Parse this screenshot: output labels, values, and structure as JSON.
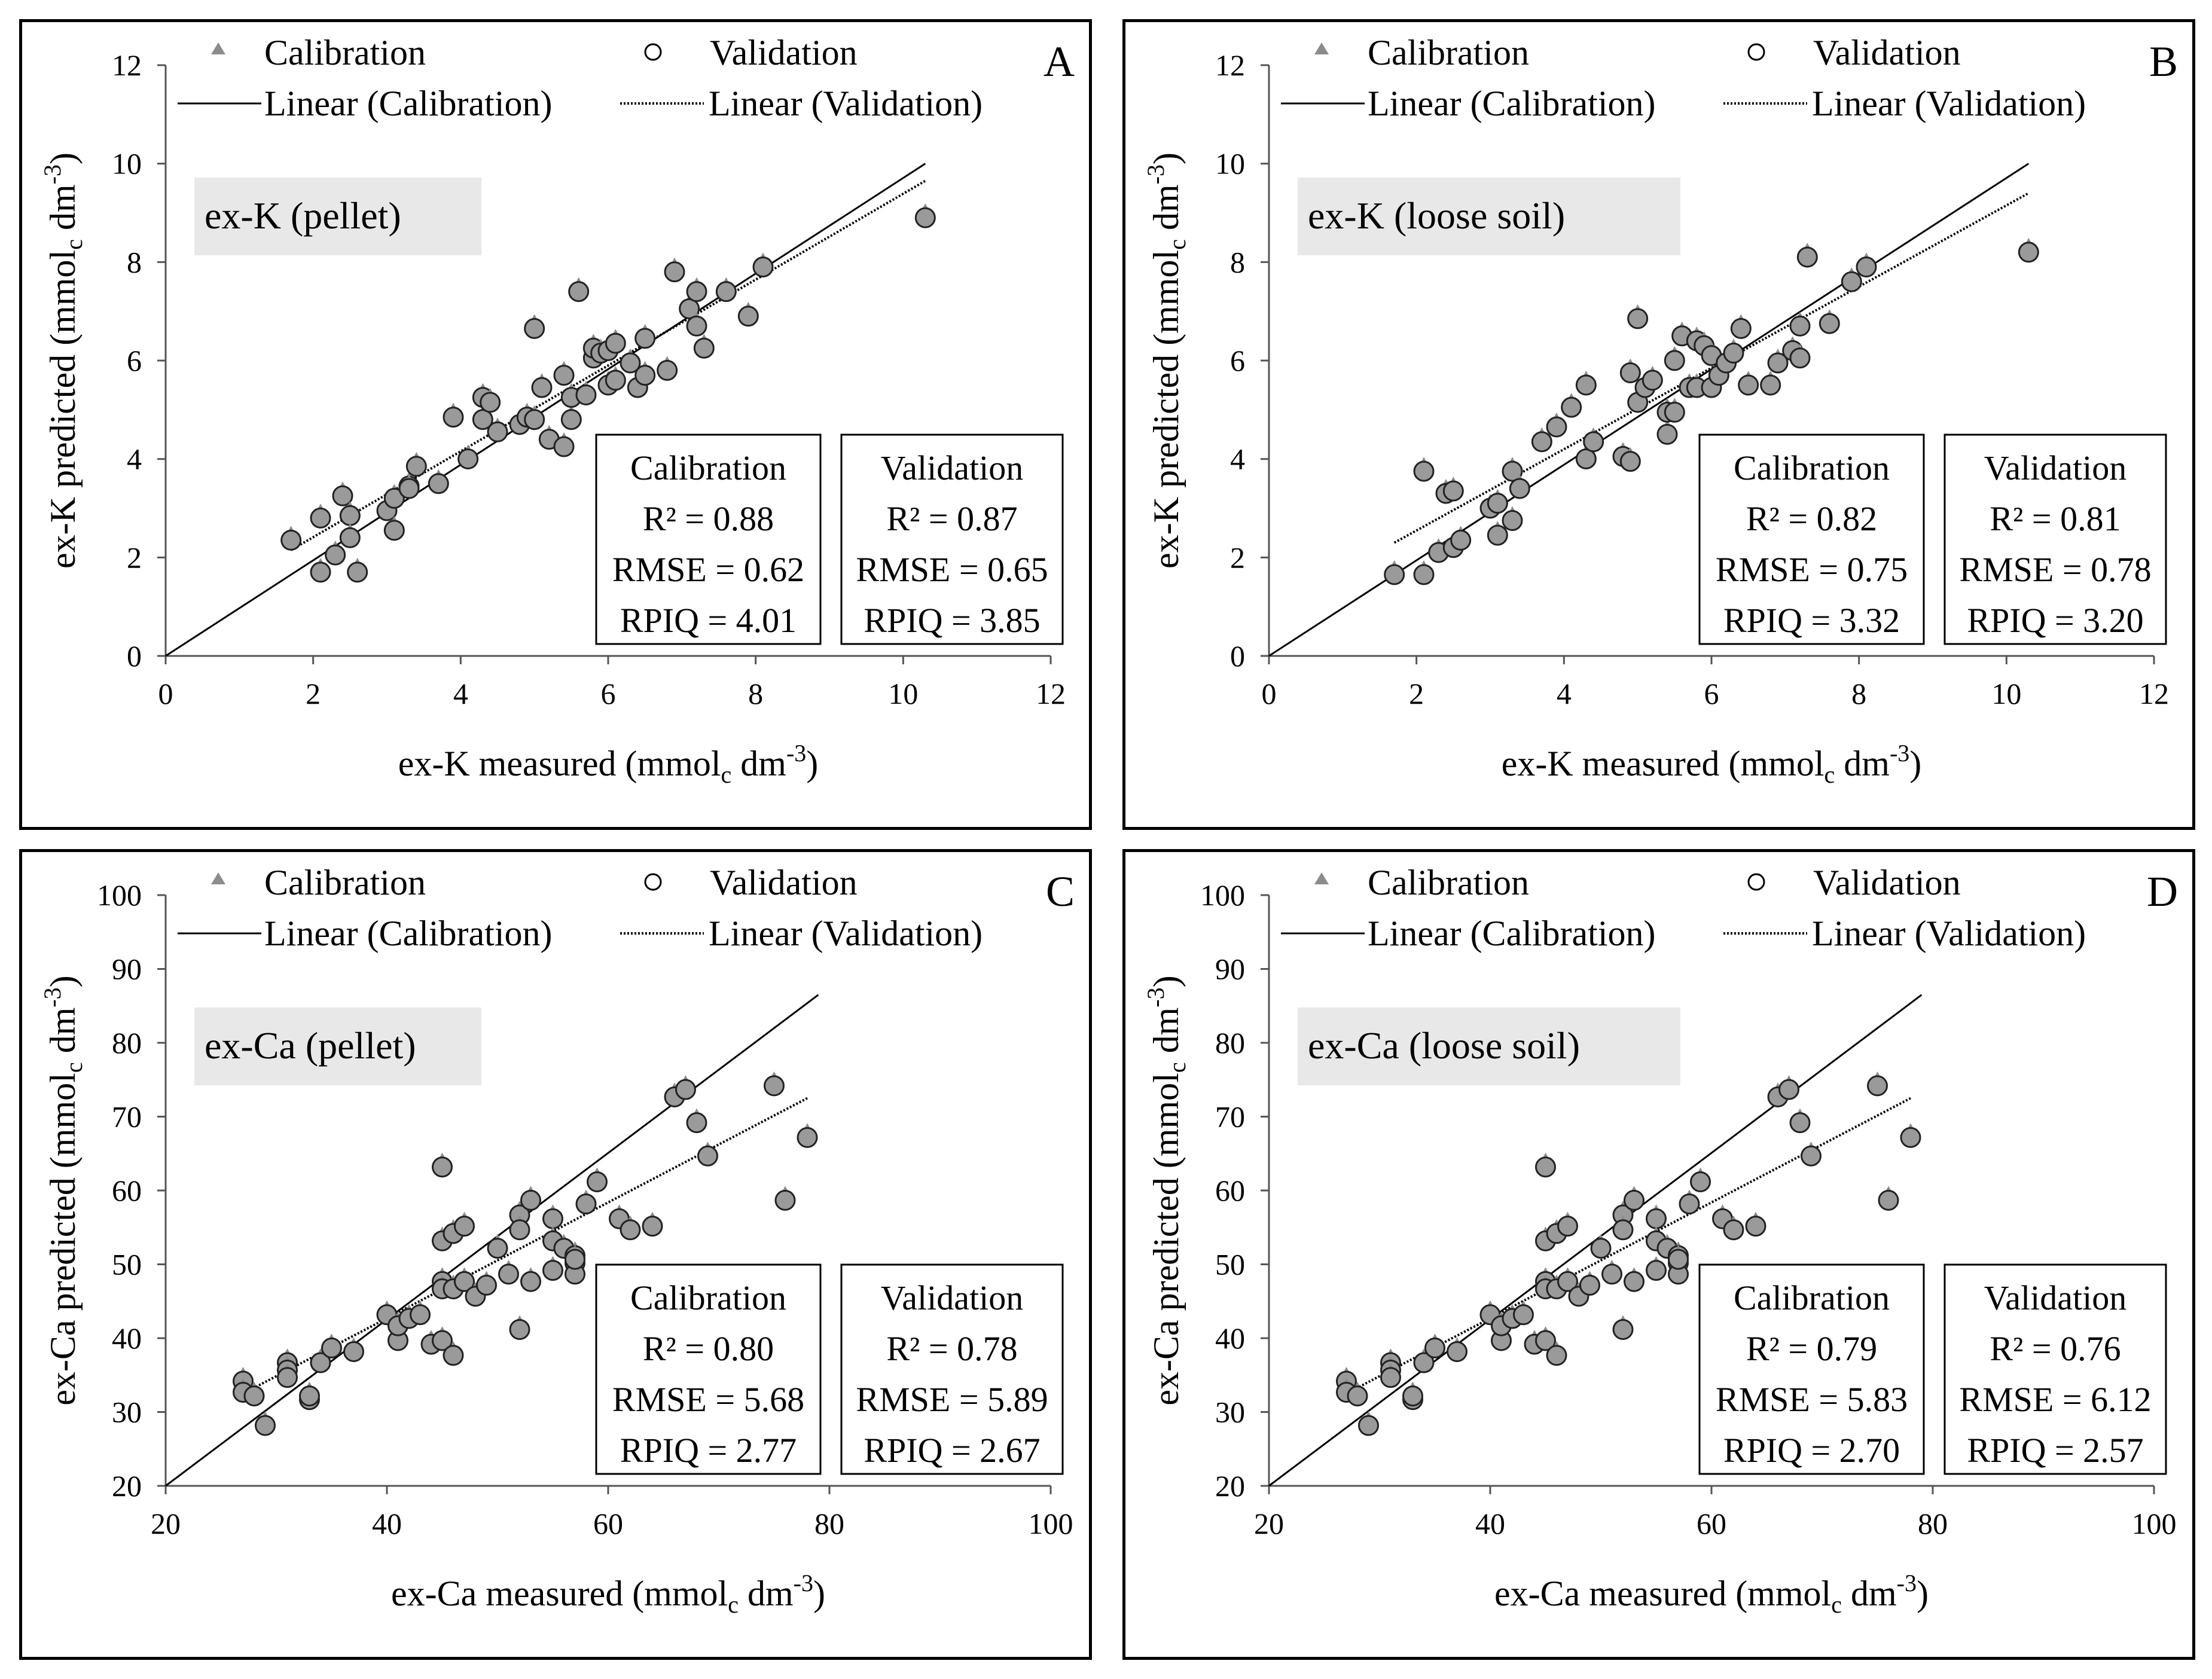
{
  "figure": {
    "legend": {
      "calibration": "Calibration",
      "validation": "Validation",
      "linear_calibration": "Linear (Calibration)",
      "linear_validation": "Linear (Validation)"
    },
    "stat_labels": {
      "r2": "R² = ",
      "rmse": "RMSE = ",
      "rpiq": "RPIQ = "
    }
  },
  "chart_data": [
    {
      "panel": "A",
      "type": "scatter",
      "tag": "ex-K (pellet)",
      "xlabel": "ex-K measured (mmolc dm-3)",
      "ylabel": "ex-K predicted (mmolc dm-3)",
      "xlim": [
        0,
        12
      ],
      "ylim": [
        0,
        12
      ],
      "xticks": [
        "0",
        "2",
        "4",
        "6",
        "8",
        "10",
        "12"
      ],
      "yticks": [
        "0",
        "2",
        "4",
        "6",
        "8",
        "10",
        "12"
      ],
      "calibration_fit": {
        "x": [
          0,
          10.3
        ],
        "y": [
          0,
          10.0
        ]
      },
      "validation_fit": {
        "x": [
          1.7,
          10.3
        ],
        "y": [
          2.15,
          9.65
        ]
      },
      "points_x": [
        1.7,
        2.1,
        2.1,
        2.3,
        2.4,
        2.5,
        2.5,
        2.6,
        3.0,
        3.1,
        3.1,
        3.3,
        3.3,
        3.4,
        3.7,
        3.9,
        4.1,
        4.3,
        4.3,
        4.4,
        4.5,
        4.8,
        4.9,
        5.0,
        5.0,
        5.1,
        5.2,
        5.4,
        5.4,
        5.5,
        5.5,
        5.6,
        5.7,
        5.8,
        5.8,
        5.9,
        6.0,
        6.0,
        6.1,
        6.1,
        6.3,
        6.4,
        6.5,
        6.5,
        6.8,
        6.9,
        7.1,
        7.2,
        7.2,
        7.3,
        7.6,
        7.9,
        8.1,
        10.3
      ],
      "points_y": [
        2.4,
        2.85,
        1.75,
        2.1,
        3.3,
        2.9,
        2.45,
        1.75,
        3.0,
        3.25,
        2.6,
        3.5,
        3.45,
        3.9,
        3.55,
        4.9,
        4.05,
        5.3,
        4.85,
        5.2,
        4.6,
        4.75,
        4.9,
        6.7,
        4.85,
        5.5,
        4.45,
        4.3,
        5.75,
        4.85,
        5.3,
        7.45,
        5.35,
        6.1,
        6.3,
        6.2,
        5.55,
        6.25,
        6.4,
        5.65,
        6.0,
        5.5,
        6.5,
        5.75,
        5.85,
        7.85,
        7.1,
        6.75,
        7.45,
        6.3,
        7.45,
        6.95,
        7.95,
        8.95
      ],
      "calibration": {
        "title": "Calibration",
        "r2": "0.88",
        "rmse": "0.62",
        "rpiq": "4.01"
      },
      "validation": {
        "title": "Validation",
        "r2": "0.87",
        "rmse": "0.65",
        "rpiq": "3.85"
      }
    },
    {
      "panel": "B",
      "type": "scatter",
      "tag": "ex-K (loose soil)",
      "xlabel": "ex-K measured (mmolc dm-3)",
      "ylabel": "ex-K predicted (mmolc dm-3)",
      "xlim": [
        0,
        12
      ],
      "ylim": [
        0,
        12
      ],
      "xticks": [
        "0",
        "2",
        "4",
        "6",
        "8",
        "10",
        "12"
      ],
      "yticks": [
        "0",
        "2",
        "4",
        "6",
        "8",
        "10",
        "12"
      ],
      "calibration_fit": {
        "x": [
          0,
          10.3
        ],
        "y": [
          0,
          10.0
        ]
      },
      "validation_fit": {
        "x": [
          1.7,
          10.3
        ],
        "y": [
          2.3,
          9.4
        ]
      },
      "points_x": [
        1.7,
        2.1,
        2.1,
        2.3,
        2.4,
        2.5,
        2.5,
        2.6,
        3.0,
        3.1,
        3.1,
        3.3,
        3.3,
        3.4,
        3.7,
        3.9,
        4.1,
        4.3,
        4.3,
        4.4,
        4.8,
        4.9,
        4.9,
        5.0,
        5.0,
        5.1,
        5.2,
        5.4,
        5.4,
        5.5,
        5.5,
        5.6,
        5.7,
        5.8,
        5.8,
        5.9,
        6.0,
        6.0,
        6.1,
        6.2,
        6.3,
        6.4,
        6.5,
        6.8,
        6.9,
        7.1,
        7.2,
        7.2,
        7.3,
        7.6,
        7.9,
        8.1,
        10.3
      ],
      "points_y": [
        1.7,
        3.8,
        1.7,
        2.15,
        3.35,
        3.4,
        2.25,
        2.4,
        3.05,
        3.15,
        2.5,
        3.8,
        2.8,
        3.45,
        4.4,
        4.7,
        5.1,
        5.55,
        4.05,
        4.4,
        4.1,
        5.8,
        4.0,
        6.9,
        5.2,
        5.5,
        5.65,
        4.55,
        5.0,
        5.0,
        6.05,
        6.55,
        5.5,
        6.45,
        5.5,
        6.35,
        6.15,
        5.5,
        5.75,
        6.0,
        6.2,
        6.7,
        5.55,
        5.55,
        6.0,
        6.25,
        6.75,
        6.1,
        8.15,
        6.8,
        7.65,
        7.95,
        8.25
      ],
      "calibration": {
        "title": "Calibration",
        "r2": "0.82",
        "rmse": "0.75",
        "rpiq": "3.32"
      },
      "validation": {
        "title": "Validation",
        "r2": "0.81",
        "rmse": "0.78",
        "rpiq": "3.20"
      }
    },
    {
      "panel": "C",
      "type": "scatter",
      "tag": "ex-Ca (pellet)",
      "xlabel": "ex-Ca measured (mmolc dm-3)",
      "ylabel": "ex-Ca predicted (mmolc dm-3)",
      "xlim": [
        20,
        100
      ],
      "ylim": [
        20,
        100
      ],
      "xticks": [
        "20",
        "40",
        "60",
        "80",
        "100"
      ],
      "yticks": [
        "20",
        "30",
        "40",
        "50",
        "60",
        "70",
        "80",
        "90",
        "100"
      ],
      "calibration_fit": {
        "x": [
          20,
          79
        ],
        "y": [
          20,
          86.5
        ]
      },
      "validation_fit": {
        "x": [
          27,
          78
        ],
        "y": [
          32.5,
          72.5
        ]
      },
      "points_x": [
        27,
        27,
        28,
        29,
        31,
        31,
        31,
        33,
        33,
        34,
        35,
        37,
        40,
        41,
        41,
        42,
        43,
        44,
        45,
        45,
        45,
        45,
        45,
        46,
        46,
        46,
        47,
        47,
        48,
        49,
        50,
        51,
        52,
        52,
        52,
        53,
        53,
        55,
        55,
        55,
        56,
        57,
        57,
        57,
        57,
        58,
        59,
        61,
        62,
        64,
        66,
        67,
        68,
        69,
        75,
        76,
        78
      ],
      "points_y": [
        34.5,
        33.0,
        32.5,
        28.5,
        37.0,
        36.0,
        35.0,
        32.0,
        32.5,
        37.0,
        39.0,
        38.5,
        43.5,
        40.0,
        42.0,
        43.0,
        43.5,
        39.5,
        63.5,
        53.5,
        48.0,
        47.0,
        40.0,
        54.5,
        47.0,
        38.0,
        55.5,
        48.0,
        46.0,
        47.5,
        52.5,
        49.0,
        57.0,
        55.0,
        41.5,
        59.0,
        48.0,
        56.5,
        53.5,
        49.5,
        52.5,
        51.5,
        50.5,
        49.0,
        51.0,
        58.5,
        61.5,
        56.5,
        55.0,
        55.5,
        73.0,
        74.0,
        69.5,
        65.0,
        74.5,
        59.0,
        67.5
      ],
      "calibration": {
        "title": "Calibration",
        "r2": "0.80",
        "rmse": "5.68",
        "rpiq": "2.77"
      },
      "validation": {
        "title": "Validation",
        "r2": "0.78",
        "rmse": "5.89",
        "rpiq": "2.67"
      }
    },
    {
      "panel": "D",
      "type": "scatter",
      "tag": "ex-Ca (loose soil)",
      "xlabel": "ex-Ca measured (mmolc dm-3)",
      "ylabel": "ex-Ca predicted (mmolc dm-3)",
      "xlim": [
        20,
        100
      ],
      "ylim": [
        20,
        100
      ],
      "xticks": [
        "20",
        "40",
        "60",
        "80",
        "100"
      ],
      "yticks": [
        "20",
        "30",
        "40",
        "50",
        "60",
        "70",
        "80",
        "90",
        "100"
      ],
      "calibration_fit": {
        "x": [
          20,
          79
        ],
        "y": [
          20,
          86.5
        ]
      },
      "validation_fit": {
        "x": [
          27,
          78
        ],
        "y": [
          32.5,
          72.5
        ]
      },
      "points_x": [
        27,
        27,
        28,
        29,
        31,
        31,
        31,
        33,
        33,
        34,
        35,
        37,
        40,
        41,
        41,
        42,
        43,
        44,
        45,
        45,
        45,
        45,
        45,
        46,
        46,
        46,
        47,
        47,
        48,
        49,
        50,
        51,
        52,
        52,
        52,
        53,
        53,
        55,
        55,
        55,
        56,
        57,
        57,
        57,
        57,
        58,
        59,
        61,
        62,
        64,
        66,
        67,
        68,
        69,
        75,
        76,
        78
      ],
      "points_y": [
        34.5,
        33.0,
        32.5,
        28.5,
        37.0,
        36.0,
        35.0,
        32.0,
        32.5,
        37.0,
        39.0,
        38.5,
        43.5,
        40.0,
        42.0,
        43.0,
        43.5,
        39.5,
        63.5,
        53.5,
        48.0,
        47.0,
        40.0,
        54.5,
        47.0,
        38.0,
        55.5,
        48.0,
        46.0,
        47.5,
        52.5,
        49.0,
        57.0,
        55.0,
        41.5,
        59.0,
        48.0,
        56.5,
        53.5,
        49.5,
        52.5,
        51.5,
        50.5,
        49.0,
        51.0,
        58.5,
        61.5,
        56.5,
        55.0,
        55.5,
        73.0,
        74.0,
        69.5,
        65.0,
        74.5,
        59.0,
        67.5
      ],
      "calibration": {
        "title": "Calibration",
        "r2": "0.79",
        "rmse": "5.83",
        "rpiq": "2.70"
      },
      "validation": {
        "title": "Validation",
        "r2": "0.76",
        "rmse": "6.12",
        "rpiq": "2.57"
      }
    }
  ]
}
